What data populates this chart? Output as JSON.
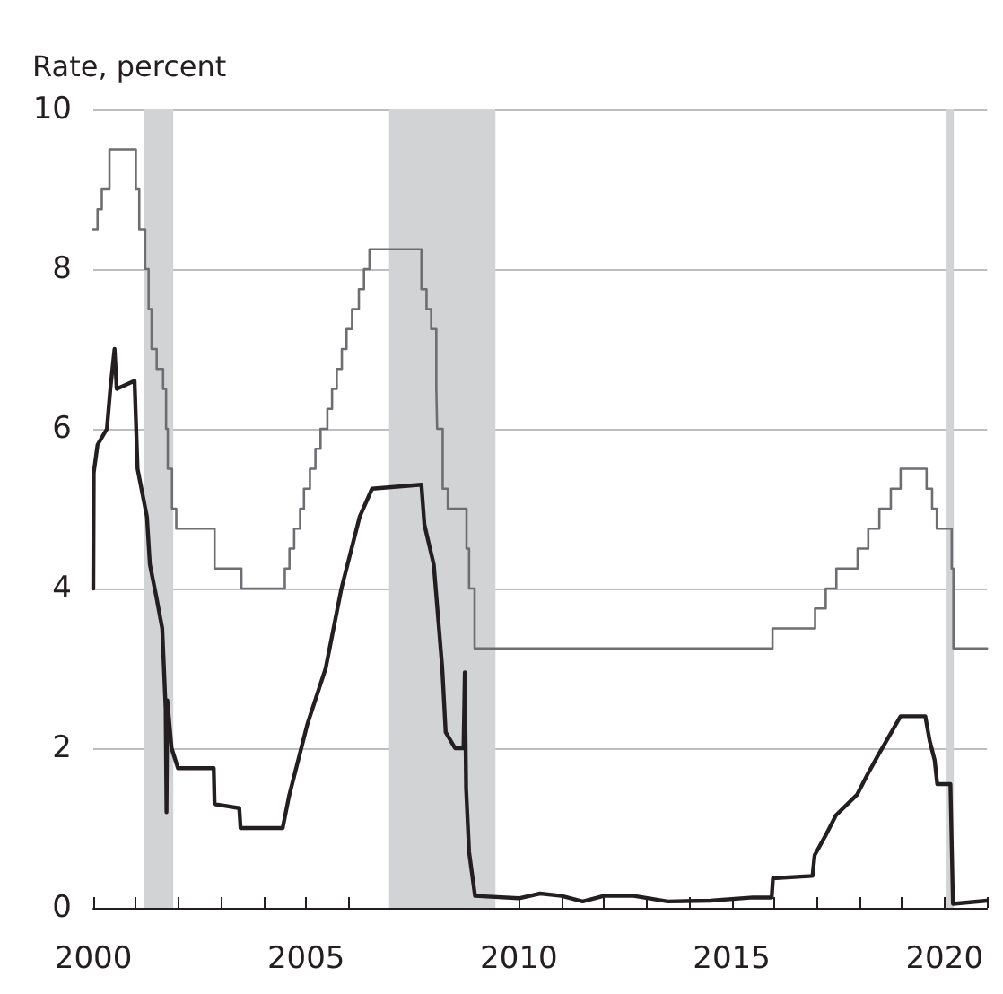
{
  "chart_data": {
    "type": "line",
    "ylabel": "Rate, percent",
    "xlim": [
      2000,
      2021
    ],
    "xticks": [
      2000,
      {
        "value": 2001,
        "label": null
      },
      {
        "value": 2002,
        "label": null
      },
      {
        "value": 2003,
        "label": null
      },
      {
        "value": 2004,
        "label": null
      },
      2005,
      {
        "value": 2006,
        "label": null
      },
      {
        "value": 2007,
        "label": null
      },
      {
        "value": 2008,
        "label": null
      },
      {
        "value": 2009,
        "label": null
      },
      2010,
      {
        "value": 2011,
        "label": null
      },
      {
        "value": 2012,
        "label": null
      },
      {
        "value": 2013,
        "label": null
      },
      {
        "value": 2014,
        "label": null
      },
      2015,
      {
        "value": 2016,
        "label": null
      },
      {
        "value": 2017,
        "label": null
      },
      {
        "value": 2018,
        "label": null
      },
      {
        "value": 2019,
        "label": null
      },
      2020,
      {
        "value": 2021,
        "label": null
      }
    ],
    "ylim": [
      0,
      10
    ],
    "yticks": [
      0,
      2,
      4,
      6,
      8,
      10
    ],
    "grid": "y",
    "bands": [
      {
        "axis": "x",
        "from": 2001.2,
        "to": 2001.88,
        "color": "#d1d3d4"
      },
      {
        "axis": "x",
        "from": 2006.95,
        "to": 2009.45,
        "color": "#d1d3d4"
      },
      {
        "axis": "x",
        "from": 2020.05,
        "to": 2020.22,
        "color": "#d1d3d4"
      }
    ],
    "series": [
      {
        "type": "step",
        "color": "#6d6e71",
        "x": [
          2000.0,
          2000.1,
          2000.2,
          2000.38,
          2001.0,
          2001.08,
          2001.22,
          2001.3,
          2001.37,
          2001.49,
          2001.64,
          2001.71,
          2001.75,
          2001.85,
          2001.95,
          2002.85,
          2003.48,
          2004.5,
          2004.61,
          2004.72,
          2004.86,
          2004.95,
          2005.09,
          2005.22,
          2005.34,
          2005.5,
          2005.61,
          2005.72,
          2005.84,
          2005.95,
          2006.08,
          2006.24,
          2006.36,
          2006.49,
          2007.71,
          2007.83,
          2007.94,
          2008.06,
          2008.08,
          2008.21,
          2008.33,
          2008.77,
          2008.83,
          2008.96,
          2015.96,
          2016.96,
          2017.21,
          2017.46,
          2017.96,
          2018.21,
          2018.47,
          2018.74,
          2018.97,
          2019.58,
          2019.71,
          2019.82,
          2020.17,
          2020.21,
          2021.0
        ],
        "values": [
          8.5,
          8.75,
          9.0,
          9.5,
          9.0,
          8.5,
          8.0,
          7.5,
          7.0,
          6.75,
          6.5,
          6.0,
          5.5,
          5.0,
          4.75,
          4.25,
          4.0,
          4.25,
          4.5,
          4.75,
          5.0,
          5.25,
          5.5,
          5.75,
          6.0,
          6.25,
          6.5,
          6.75,
          7.0,
          7.25,
          7.5,
          7.75,
          8.0,
          8.25,
          7.75,
          7.5,
          7.25,
          6.5,
          6.0,
          5.25,
          5.0,
          4.5,
          4.0,
          3.25,
          3.5,
          3.75,
          4.0,
          4.25,
          4.5,
          4.75,
          5.0,
          5.25,
          5.5,
          5.25,
          5.0,
          4.75,
          4.25,
          3.25,
          3.25
        ]
      },
      {
        "color": "#231f20",
        "x": [
          2000.0,
          2000.01,
          2000.1,
          2000.32,
          2000.4,
          2000.5,
          2000.55,
          2000.97,
          2001.04,
          2001.26,
          2001.33,
          2001.48,
          2001.62,
          2001.7,
          2001.72,
          2001.74,
          2001.84,
          2001.99,
          2002.83,
          2002.85,
          2003.43,
          2003.46,
          2004.45,
          2004.6,
          2005.03,
          2005.46,
          2005.83,
          2006.26,
          2006.55,
          2007.71,
          2007.78,
          2008.0,
          2008.2,
          2008.28,
          2008.5,
          2008.7,
          2008.73,
          2008.76,
          2008.83,
          2008.97,
          2010.0,
          2010.5,
          2011.0,
          2011.5,
          2012.0,
          2012.7,
          2013.5,
          2014.5,
          2015.5,
          2015.94,
          2015.97,
          2016.9,
          2016.95,
          2017.2,
          2017.45,
          2017.95,
          2018.2,
          2018.45,
          2018.97,
          2019.55,
          2019.65,
          2019.77,
          2019.83,
          2020.14,
          2020.2,
          2021.0
        ],
        "values": [
          4.0,
          5.45,
          5.8,
          6.0,
          6.5,
          7.0,
          6.5,
          6.6,
          5.5,
          4.9,
          4.3,
          3.9,
          3.5,
          2.5,
          1.2,
          2.6,
          2.0,
          1.75,
          1.75,
          1.3,
          1.25,
          1.0,
          1.0,
          1.4,
          2.3,
          3.0,
          4.0,
          4.9,
          5.25,
          5.3,
          4.8,
          4.3,
          3.0,
          2.2,
          2.0,
          2.0,
          2.95,
          1.5,
          0.7,
          0.15,
          0.12,
          0.18,
          0.15,
          0.08,
          0.15,
          0.15,
          0.08,
          0.09,
          0.13,
          0.13,
          0.37,
          0.4,
          0.66,
          0.9,
          1.16,
          1.42,
          1.68,
          1.92,
          2.4,
          2.4,
          2.1,
          1.85,
          1.55,
          1.55,
          0.05,
          0.09
        ]
      }
    ]
  }
}
